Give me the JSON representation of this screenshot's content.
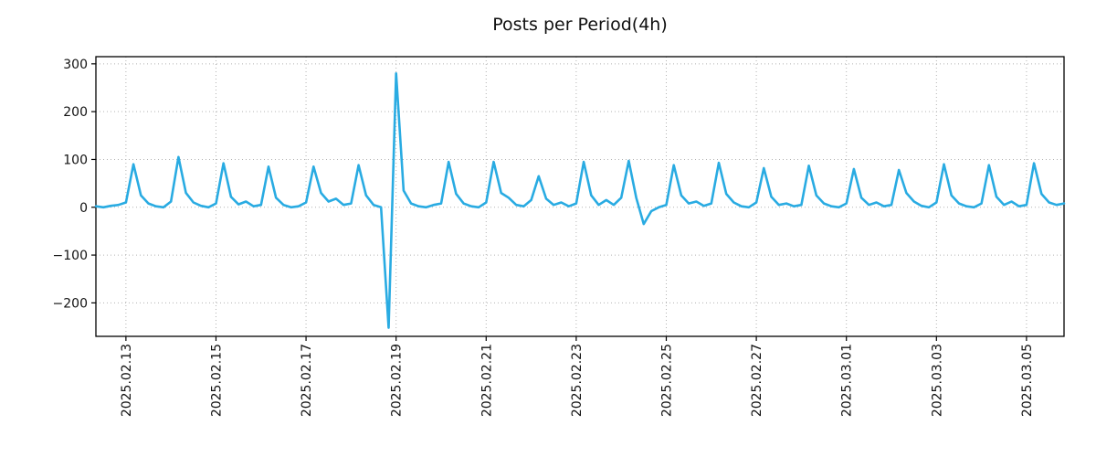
{
  "title": "Posts per Period(4h)",
  "chart_data": {
    "type": "line",
    "title": "Posts per Period(4h)",
    "xlabel": "",
    "ylabel": "",
    "ylim": [
      -270,
      315
    ],
    "grid": true,
    "grid_style": "dotted",
    "legend": false,
    "x_start": "2025-02-12 08:00",
    "interval_hours": 4,
    "x_tick_labels": [
      "2025.02.13",
      "2025.02.15",
      "2025.02.17",
      "2025.02.19",
      "2025.02.21",
      "2025.02.23",
      "2025.02.25",
      "2025.02.27",
      "2025.03.01",
      "2025.03.03",
      "2025.03.05"
    ],
    "y_ticks": [
      300,
      200,
      100,
      0,
      -100,
      -200
    ],
    "series": [
      {
        "name": "posts",
        "color": "#29abe2",
        "values": [
          2,
          0,
          3,
          5,
          10,
          90,
          25,
          8,
          2,
          0,
          12,
          105,
          30,
          10,
          3,
          0,
          8,
          92,
          22,
          6,
          12,
          2,
          5,
          85,
          20,
          5,
          0,
          2,
          10,
          85,
          30,
          12,
          18,
          5,
          8,
          88,
          25,
          5,
          0,
          -252,
          280,
          35,
          8,
          2,
          0,
          5,
          8,
          95,
          28,
          8,
          2,
          0,
          10,
          95,
          30,
          20,
          5,
          2,
          15,
          65,
          18,
          5,
          10,
          2,
          8,
          95,
          25,
          5,
          15,
          5,
          20,
          97,
          20,
          -35,
          -8,
          0,
          5,
          88,
          25,
          8,
          12,
          3,
          8,
          93,
          28,
          10,
          2,
          0,
          10,
          82,
          22,
          5,
          8,
          2,
          5,
          87,
          25,
          8,
          2,
          0,
          8,
          80,
          20,
          5,
          10,
          2,
          5,
          78,
          30,
          12,
          3,
          0,
          10,
          90,
          25,
          8,
          2,
          0,
          8,
          88,
          22,
          5,
          12,
          2,
          5,
          92,
          28,
          10,
          5,
          8
        ]
      }
    ]
  }
}
